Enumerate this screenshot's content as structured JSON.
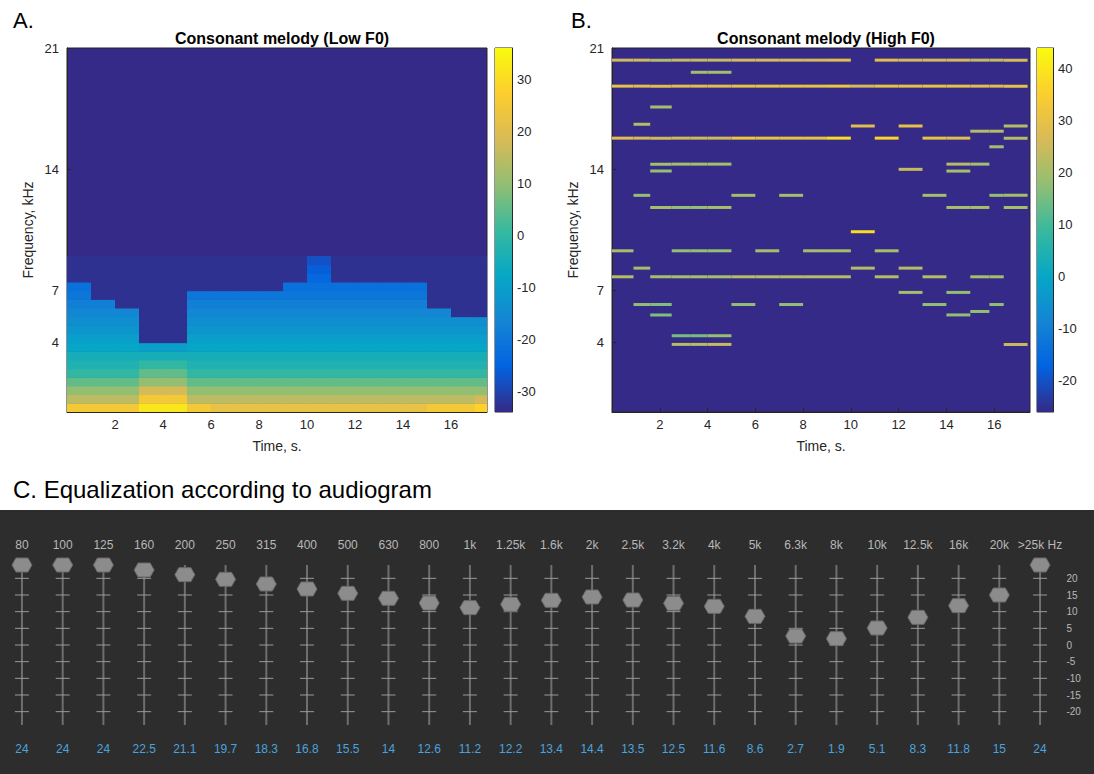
{
  "chart_data": [
    {
      "type": "spectrogram",
      "panel": "A.",
      "title": "Consonant melody (Low F0)",
      "x_label": "Time, s.",
      "y_label": "Frequency, kHz",
      "xlim": [
        0,
        17.5
      ],
      "xticks": [
        2,
        4,
        6,
        8,
        10,
        12,
        14,
        16
      ],
      "ylim": [
        0,
        21
      ],
      "yticks": [
        4,
        7,
        14,
        21
      ],
      "colorbar": {
        "range": [
          -34,
          36
        ],
        "ticks": [
          -30,
          -20,
          -10,
          0,
          10,
          20,
          30
        ]
      },
      "time_edges": [
        0,
        1,
        2,
        3,
        4,
        5,
        6,
        7,
        8,
        9,
        10,
        11,
        12,
        13,
        14,
        15,
        16,
        17,
        17.5
      ],
      "freq_edges": [
        0,
        0.5,
        1,
        1.5,
        2,
        2.5,
        3,
        3.5,
        4,
        4.5,
        5,
        5.5,
        6,
        6.5,
        7,
        7.5,
        8,
        8.5,
        9
      ],
      "cells": [
        [
          25,
          25,
          25,
          32,
          32,
          25,
          22,
          22,
          22,
          22,
          22,
          22,
          22,
          22,
          22,
          25,
          25,
          28
        ],
        [
          15,
          15,
          15,
          25,
          25,
          15,
          15,
          15,
          15,
          15,
          15,
          15,
          15,
          15,
          15,
          15,
          15,
          18
        ],
        [
          10,
          10,
          10,
          18,
          18,
          10,
          10,
          10,
          10,
          10,
          10,
          10,
          10,
          10,
          10,
          10,
          10,
          10
        ],
        [
          5,
          5,
          5,
          10,
          10,
          5,
          5,
          5,
          5,
          5,
          5,
          5,
          5,
          5,
          5,
          5,
          5,
          5
        ],
        [
          0,
          0,
          0,
          5,
          5,
          0,
          0,
          0,
          0,
          0,
          0,
          0,
          0,
          0,
          0,
          0,
          0,
          0
        ],
        [
          -3,
          -3,
          -3,
          0,
          0,
          -3,
          -3,
          -3,
          -3,
          -3,
          -3,
          -3,
          -3,
          -3,
          -3,
          -3,
          -3,
          -3
        ],
        [
          -5,
          -5,
          -5,
          -5,
          -5,
          -5,
          -5,
          -5,
          -5,
          -5,
          -5,
          -5,
          -5,
          -5,
          -5,
          -5,
          -5,
          -5
        ],
        [
          -8,
          -8,
          -8,
          -10,
          -10,
          -8,
          -8,
          -8,
          -8,
          -8,
          -8,
          -8,
          -8,
          -8,
          -8,
          -8,
          -8,
          -8
        ],
        [
          -10,
          -10,
          -10,
          -33,
          -33,
          -10,
          -10,
          -10,
          -10,
          -10,
          -10,
          -10,
          -10,
          -10,
          -10,
          -10,
          -10,
          -10
        ],
        [
          -12,
          -12,
          -12,
          -33,
          -33,
          -12,
          -12,
          -12,
          -12,
          -12,
          -12,
          -12,
          -12,
          -12,
          -12,
          -12,
          -12,
          -12
        ],
        [
          -14,
          -14,
          -14,
          -33,
          -33,
          -14,
          -14,
          -14,
          -14,
          -14,
          -14,
          -14,
          -14,
          -14,
          -14,
          -14,
          -14,
          -14
        ],
        [
          -16,
          -16,
          -16,
          -33,
          -33,
          -16,
          -16,
          -16,
          -16,
          -16,
          -16,
          -16,
          -16,
          -16,
          -16,
          -16,
          -33,
          -33
        ],
        [
          -18,
          -18,
          -33,
          -33,
          -33,
          -18,
          -18,
          -18,
          -18,
          -18,
          -18,
          -18,
          -18,
          -18,
          -18,
          -33,
          -33,
          -33
        ],
        [
          -20,
          -33,
          -33,
          -33,
          -33,
          -20,
          -20,
          -20,
          -20,
          -20,
          -20,
          -20,
          -20,
          -20,
          -20,
          -33,
          -33,
          -33
        ],
        [
          -22,
          -33,
          -33,
          -33,
          -33,
          -33,
          -33,
          -33,
          -33,
          -22,
          -22,
          -22,
          -22,
          -22,
          -22,
          -33,
          -33,
          -33
        ],
        [
          -33,
          -33,
          -33,
          -33,
          -33,
          -33,
          -33,
          -33,
          -33,
          -33,
          -24,
          -33,
          -33,
          -33,
          -33,
          -33,
          -33,
          -33
        ],
        [
          -33,
          -33,
          -33,
          -33,
          -33,
          -33,
          -33,
          -33,
          -33,
          -33,
          -26,
          -33,
          -33,
          -33,
          -33,
          -33,
          -33,
          -33
        ],
        [
          -33,
          -33,
          -33,
          -33,
          -33,
          -33,
          -33,
          -33,
          -33,
          -33,
          -28,
          -33,
          -33,
          -33,
          -33,
          -33,
          -33,
          -33
        ]
      ]
    },
    {
      "type": "spectrogram",
      "panel": "B.",
      "title": "Consonant melody (High F0)",
      "x_label": "Time, s.",
      "y_label": "Frequency, kHz",
      "xlim": [
        0,
        17.5
      ],
      "xticks": [
        2,
        4,
        6,
        8,
        10,
        12,
        14,
        16
      ],
      "ylim": [
        0,
        21
      ],
      "yticks": [
        4,
        7,
        14,
        21
      ],
      "colorbar": {
        "range": [
          -26,
          44
        ],
        "ticks": [
          -20,
          -10,
          0,
          10,
          20,
          30,
          40
        ]
      },
      "tones": [
        [
          0,
          0.9,
          20.3,
          25
        ],
        [
          0,
          0.9,
          18.8,
          30
        ],
        [
          0,
          0.9,
          15.8,
          28
        ],
        [
          0,
          0.9,
          9.3,
          20
        ],
        [
          0,
          0.9,
          7.8,
          22
        ],
        [
          0.9,
          1.6,
          20.3,
          25
        ],
        [
          0.9,
          1.6,
          18.8,
          28
        ],
        [
          0.9,
          1.6,
          16.6,
          22
        ],
        [
          0.9,
          1.6,
          15.8,
          26
        ],
        [
          0.9,
          1.6,
          12.5,
          18
        ],
        [
          0.9,
          1.6,
          8.3,
          20
        ],
        [
          0.9,
          1.6,
          6.2,
          18
        ],
        [
          1.6,
          2.5,
          20.3,
          22
        ],
        [
          1.6,
          2.5,
          18.8,
          28
        ],
        [
          1.6,
          2.5,
          17.6,
          20
        ],
        [
          1.6,
          2.5,
          15.8,
          25
        ],
        [
          1.6,
          2.5,
          14.3,
          20
        ],
        [
          1.6,
          2.5,
          13.9,
          18
        ],
        [
          1.6,
          2.5,
          11.8,
          20
        ],
        [
          1.6,
          2.5,
          7.8,
          20
        ],
        [
          1.6,
          2.5,
          6.2,
          16
        ],
        [
          1.6,
          2.5,
          5.6,
          16
        ],
        [
          2.5,
          3.3,
          20.3,
          24
        ],
        [
          2.5,
          3.3,
          18.8,
          28
        ],
        [
          2.5,
          3.3,
          15.8,
          25
        ],
        [
          2.5,
          3.3,
          14.3,
          20
        ],
        [
          2.5,
          3.3,
          11.8,
          18
        ],
        [
          2.5,
          3.3,
          9.3,
          18
        ],
        [
          2.5,
          3.3,
          7.8,
          20
        ],
        [
          2.5,
          3.3,
          4.4,
          15
        ],
        [
          2.5,
          3.3,
          3.9,
          22
        ],
        [
          3.3,
          4.0,
          20.3,
          24
        ],
        [
          3.3,
          4.0,
          19.6,
          20
        ],
        [
          3.3,
          4.0,
          18.8,
          28
        ],
        [
          3.3,
          4.0,
          15.8,
          25
        ],
        [
          3.3,
          4.0,
          14.3,
          20
        ],
        [
          3.3,
          4.0,
          11.8,
          18
        ],
        [
          3.3,
          4.0,
          9.3,
          18
        ],
        [
          3.3,
          4.0,
          7.8,
          20
        ],
        [
          3.3,
          4.0,
          4.4,
          15
        ],
        [
          3.3,
          4.0,
          3.9,
          22
        ],
        [
          4.0,
          5.0,
          20.3,
          24
        ],
        [
          4.0,
          5.0,
          19.6,
          20
        ],
        [
          4.0,
          5.0,
          18.8,
          28
        ],
        [
          4.0,
          5.0,
          15.8,
          25
        ],
        [
          4.0,
          5.0,
          14.3,
          20
        ],
        [
          4.0,
          5.0,
          11.8,
          20
        ],
        [
          4.0,
          5.0,
          9.3,
          18
        ],
        [
          4.0,
          5.0,
          7.8,
          20
        ],
        [
          4.0,
          5.0,
          4.4,
          18
        ],
        [
          4.0,
          5.0,
          3.9,
          24
        ],
        [
          5,
          6,
          20.3,
          26
        ],
        [
          5,
          6,
          18.8,
          30
        ],
        [
          5,
          6,
          15.8,
          32
        ],
        [
          5,
          6,
          12.5,
          20
        ],
        [
          5,
          6,
          7.8,
          22
        ],
        [
          5,
          6,
          6.2,
          18
        ],
        [
          6,
          7,
          20.3,
          26
        ],
        [
          6,
          7,
          18.8,
          30
        ],
        [
          6,
          7,
          15.8,
          30
        ],
        [
          6,
          7,
          9.3,
          20
        ],
        [
          6,
          7,
          7.8,
          22
        ],
        [
          7,
          8,
          20.3,
          26
        ],
        [
          7,
          8,
          18.8,
          30
        ],
        [
          7,
          8,
          15.8,
          30
        ],
        [
          7,
          8,
          12.5,
          20
        ],
        [
          7,
          8,
          7.8,
          22
        ],
        [
          7,
          8,
          6.2,
          18
        ],
        [
          8,
          9,
          20.3,
          26
        ],
        [
          8,
          9,
          18.8,
          30
        ],
        [
          8,
          9,
          15.8,
          30
        ],
        [
          8,
          9,
          9.3,
          20
        ],
        [
          8,
          9,
          7.8,
          22
        ],
        [
          9,
          10,
          20.3,
          28
        ],
        [
          9,
          10,
          18.8,
          32
        ],
        [
          9,
          10,
          15.8,
          38
        ],
        [
          9,
          10,
          9.3,
          20
        ],
        [
          9,
          10,
          7.8,
          22
        ],
        [
          10,
          11,
          18.8,
          26
        ],
        [
          10,
          11,
          16.5,
          28
        ],
        [
          10,
          11,
          10.4,
          38
        ],
        [
          10,
          11,
          8.3,
          22
        ],
        [
          11,
          12,
          20.3,
          28
        ],
        [
          11,
          12,
          18.8,
          30
        ],
        [
          11,
          12,
          15.8,
          36
        ],
        [
          11,
          12,
          9.3,
          20
        ],
        [
          11,
          12,
          7.8,
          22
        ],
        [
          12,
          13,
          20.3,
          26
        ],
        [
          12,
          13,
          18.8,
          30
        ],
        [
          12,
          13,
          16.5,
          30
        ],
        [
          12,
          13,
          14.0,
          24
        ],
        [
          12,
          13,
          8.3,
          22
        ],
        [
          12,
          13,
          6.9,
          20
        ],
        [
          13,
          14,
          20.3,
          26
        ],
        [
          13,
          14,
          18.8,
          30
        ],
        [
          13,
          14,
          15.8,
          30
        ],
        [
          13,
          14,
          12.5,
          20
        ],
        [
          13,
          14,
          7.8,
          22
        ],
        [
          13,
          14,
          6.2,
          18
        ],
        [
          14,
          15,
          20.3,
          26
        ],
        [
          14,
          15,
          18.8,
          30
        ],
        [
          14,
          15,
          15.8,
          28
        ],
        [
          14,
          15,
          14.3,
          22
        ],
        [
          14,
          15,
          13.9,
          20
        ],
        [
          14,
          15,
          11.8,
          20
        ],
        [
          14,
          15,
          6.9,
          18
        ],
        [
          14,
          15,
          5.6,
          18
        ],
        [
          15,
          15.8,
          20.3,
          24
        ],
        [
          15,
          15.8,
          18.8,
          28
        ],
        [
          15,
          15.8,
          16.2,
          22
        ],
        [
          15,
          15.8,
          14.3,
          20
        ],
        [
          15,
          15.8,
          11.8,
          20
        ],
        [
          15,
          15.8,
          7.8,
          20
        ],
        [
          15,
          15.8,
          5.8,
          18
        ],
        [
          15.8,
          16.4,
          20.3,
          24
        ],
        [
          15.8,
          16.4,
          18.8,
          28
        ],
        [
          15.8,
          16.4,
          16.2,
          22
        ],
        [
          15.8,
          16.4,
          15.3,
          20
        ],
        [
          15.8,
          16.4,
          12.5,
          18
        ],
        [
          15.8,
          16.4,
          7.8,
          20
        ],
        [
          15.8,
          16.4,
          6.2,
          18
        ],
        [
          16.4,
          17.4,
          20.3,
          26
        ],
        [
          16.4,
          17.4,
          18.8,
          30
        ],
        [
          16.4,
          17.4,
          16.5,
          22
        ],
        [
          16.4,
          17.4,
          15.8,
          22
        ],
        [
          16.4,
          17.4,
          12.5,
          20
        ],
        [
          16.4,
          17.4,
          11.8,
          20
        ],
        [
          16.4,
          17.4,
          3.9,
          24
        ]
      ]
    },
    {
      "type": "equalizer",
      "title": "C. Equalization according to audiogram",
      "categories": [
        "80",
        "100",
        "125",
        "160",
        "200",
        "250",
        "315",
        "400",
        "500",
        "630",
        "800",
        "1k",
        "1.25k",
        "1.6k",
        "2k",
        "2.5k",
        "3.2k",
        "4k",
        "5k",
        "6.3k",
        "8k",
        "10k",
        "12.5k",
        "16k",
        "20k",
        ">25k Hz"
      ],
      "values": [
        24,
        24,
        24,
        22.5,
        21.1,
        19.7,
        18.3,
        16.8,
        15.5,
        14,
        12.6,
        11.2,
        12.2,
        13.4,
        14.4,
        13.5,
        12.5,
        11.6,
        8.6,
        2.7,
        1.9,
        5.1,
        8.3,
        11.8,
        15,
        24
      ],
      "ylim": [
        -24,
        24
      ],
      "yticks": [
        20,
        15,
        10,
        5,
        0,
        -5,
        -10,
        -15,
        -20
      ],
      "data_labels": true,
      "grid": false
    }
  ]
}
